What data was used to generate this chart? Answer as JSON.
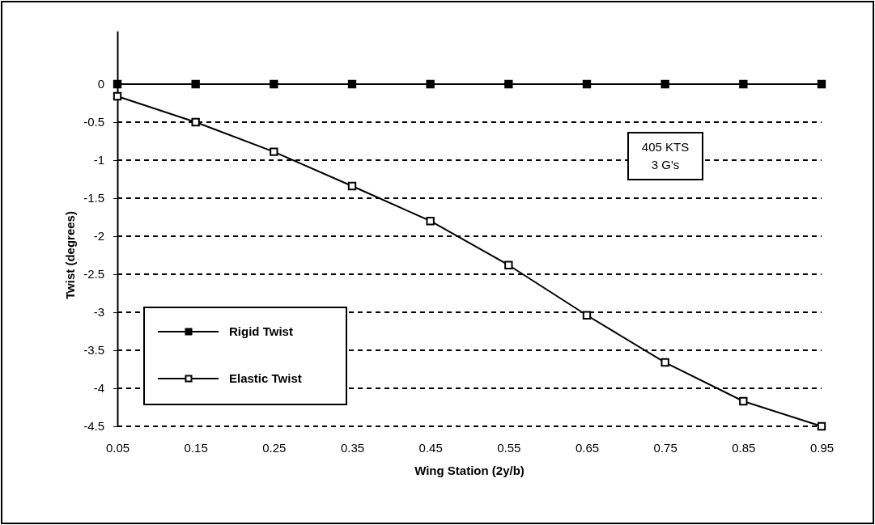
{
  "chart_data": {
    "type": "line",
    "xlabel": "Wing Station (2y/b)",
    "ylabel": "Twist (degrees)",
    "x": [
      0.05,
      0.15,
      0.25,
      0.35,
      0.45,
      0.55,
      0.65,
      0.75,
      0.85,
      0.95
    ],
    "xlim": [
      0.05,
      0.95
    ],
    "xticks": [
      {
        "value": 0.05,
        "label": "0.05"
      },
      {
        "value": 0.15,
        "label": "0.15"
      },
      {
        "value": 0.25,
        "label": "0.25"
      },
      {
        "value": 0.35,
        "label": "0.35"
      },
      {
        "value": 0.45,
        "label": "0.45"
      },
      {
        "value": 0.55,
        "label": "0.55"
      },
      {
        "value": 0.65,
        "label": "0.65"
      },
      {
        "value": 0.75,
        "label": "0.75"
      },
      {
        "value": 0.85,
        "label": "0.85"
      },
      {
        "value": 0.95,
        "label": "0.95"
      }
    ],
    "ylim": [
      -4.5,
      0.7
    ],
    "yticks": [
      0,
      -0.5,
      -1,
      -1.5,
      -2,
      -2.5,
      -3,
      -3.5,
      -4,
      -4.5
    ],
    "series": [
      {
        "name": "Rigid Twist",
        "color": "#000000",
        "values": [
          0,
          0,
          0,
          0,
          0,
          0,
          0,
          0,
          0,
          0
        ]
      },
      {
        "name": "Elastic Twist",
        "color": "#000000",
        "values": [
          -0.16,
          -0.5,
          -0.89,
          -1.34,
          -1.8,
          -2.38,
          -3.04,
          -3.66,
          -4.17,
          -4.5
        ]
      }
    ],
    "annotations": [
      "405 KTS",
      "3 G's"
    ],
    "grid": "y",
    "legend": "left",
    "marker": "square",
    "line_style": "solid"
  }
}
